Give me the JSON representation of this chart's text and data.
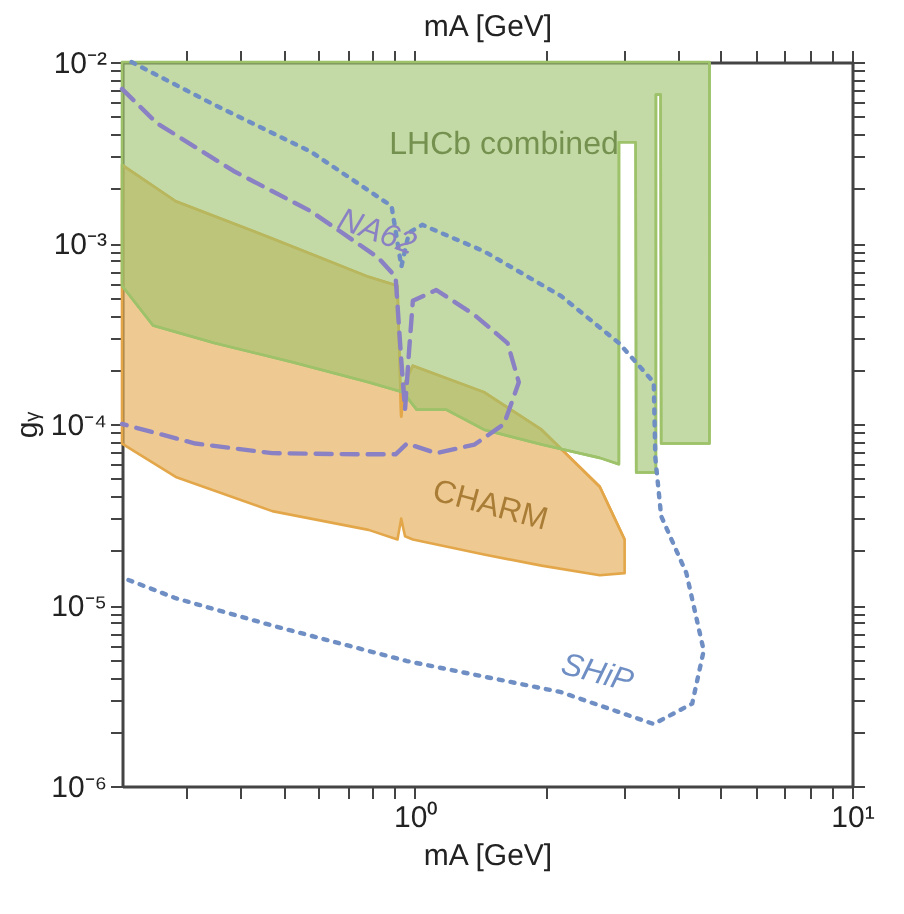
{
  "chart_data": {
    "type": "line",
    "xlabel": "mA [GeV]",
    "x2label": "mA [GeV]",
    "ylabel": "gᵧ",
    "log": "xy",
    "grid": false,
    "xlim": [
      0.214,
      10
    ],
    "ylim": [
      1e-06,
      0.01
    ],
    "xticks": [
      {
        "value": 0.3,
        "label": null
      },
      {
        "value": 0.4,
        "label": null
      },
      {
        "value": 0.5,
        "label": null
      },
      {
        "value": 0.6,
        "label": null
      },
      {
        "value": 0.7,
        "label": null
      },
      {
        "value": 0.8,
        "label": null
      },
      {
        "value": 0.9,
        "label": null
      },
      {
        "value": 1,
        "label": "10⁰"
      },
      {
        "value": 2,
        "label": null
      },
      {
        "value": 3,
        "label": null
      },
      {
        "value": 4,
        "label": null
      },
      {
        "value": 5,
        "label": null
      },
      {
        "value": 6,
        "label": null
      },
      {
        "value": 7,
        "label": null
      },
      {
        "value": 8,
        "label": null
      },
      {
        "value": 9,
        "label": null
      },
      {
        "value": 10,
        "label": "10¹"
      }
    ],
    "yticks": [
      {
        "value": 1e-06,
        "label": "10⁻⁶"
      },
      {
        "value": 2e-06,
        "label": null
      },
      {
        "value": 3e-06,
        "label": null
      },
      {
        "value": 4e-06,
        "label": null
      },
      {
        "value": 5e-06,
        "label": null
      },
      {
        "value": 6e-06,
        "label": null
      },
      {
        "value": 7e-06,
        "label": null
      },
      {
        "value": 8e-06,
        "label": null
      },
      {
        "value": 9e-06,
        "label": null
      },
      {
        "value": 1e-05,
        "label": "10⁻⁵"
      },
      {
        "value": 2e-05,
        "label": null
      },
      {
        "value": 3e-05,
        "label": null
      },
      {
        "value": 4e-05,
        "label": null
      },
      {
        "value": 5e-05,
        "label": null
      },
      {
        "value": 6e-05,
        "label": null
      },
      {
        "value": 7e-05,
        "label": null
      },
      {
        "value": 8e-05,
        "label": null
      },
      {
        "value": 9e-05,
        "label": null
      },
      {
        "value": 0.0001,
        "label": "10⁻⁴"
      },
      {
        "value": 0.0002,
        "label": null
      },
      {
        "value": 0.0003,
        "label": null
      },
      {
        "value": 0.0004,
        "label": null
      },
      {
        "value": 0.0005,
        "label": null
      },
      {
        "value": 0.0006,
        "label": null
      },
      {
        "value": 0.0007,
        "label": null
      },
      {
        "value": 0.0008,
        "label": null
      },
      {
        "value": 0.0009,
        "label": null
      },
      {
        "value": 0.001,
        "label": "10⁻³"
      },
      {
        "value": 0.002,
        "label": null
      },
      {
        "value": 0.003,
        "label": null
      },
      {
        "value": 0.004,
        "label": null
      },
      {
        "value": 0.005,
        "label": null
      },
      {
        "value": 0.006,
        "label": null
      },
      {
        "value": 0.007,
        "label": null
      },
      {
        "value": 0.008,
        "label": null
      },
      {
        "value": 0.009,
        "label": null
      },
      {
        "value": 0.01,
        "label": "10⁻²"
      }
    ],
    "series": [
      {
        "name": "CHARM",
        "type": "line",
        "color": "#e3a74a",
        "line_style": "solid",
        "x": [
          0.214,
          0.284,
          0.472,
          0.784,
          0.913,
          0.931,
          0.95,
          0.99,
          1.44,
          1.95,
          2.65,
          3.02
        ],
        "values": [
          0.0027,
          0.0017,
          0.00106,
          0.00065,
          0.00058,
          0.00011,
          0.00017,
          0.00021,
          0.00015,
          9.3e-05,
          4.5e-05,
          2.3e-05
        ],
        "lower": [
          7.8e-05,
          5.1e-05,
          3.3e-05,
          2.6e-05,
          2.3e-05,
          3e-05,
          2.4e-05,
          2.3e-05,
          1.9e-05,
          1.65e-05,
          1.46e-05,
          1.5e-05
        ],
        "upper": [
          0.0027,
          0.0017,
          0.00106,
          0.00065,
          0.00058,
          0.00011,
          0.00017,
          0.00021,
          0.00015,
          9.3e-05,
          4.5e-05,
          2.3e-05
        ]
      },
      {
        "name": "LHCb combined",
        "type": "line",
        "color": "#9dc26a",
        "line_style": "solid",
        "x": [
          0.214,
          0.252,
          0.348,
          0.523,
          0.784,
          0.94,
          1.01,
          1.18,
          1.44,
          1.95,
          2.65,
          2.93,
          2.931,
          3.2,
          3.21,
          3.56,
          3.561,
          3.65,
          3.66,
          4.0,
          4.72,
          4.721
        ],
        "values": [
          0.00058,
          0.00035,
          0.00028,
          0.00022,
          0.00017,
          0.00015,
          0.00012,
          0.00012,
          9.3e-05,
          7.7e-05,
          6.5e-05,
          6e-05,
          0.0036,
          0.0036,
          5.4e-05,
          5.4e-05,
          0.0066,
          0.0066,
          7.8e-05,
          7.8e-05,
          7.8e-05,
          0.01
        ],
        "lower": [
          0.00058,
          0.00035,
          0.00028,
          0.00022,
          0.00017,
          0.00015,
          0.00012,
          0.00012,
          9.3e-05,
          7.7e-05,
          6.5e-05,
          6e-05,
          0.0036,
          0.0036,
          5.4e-05,
          5.4e-05,
          0.0066,
          0.0066,
          7.8e-05,
          7.8e-05,
          7.8e-05,
          0.01
        ],
        "upper": [
          0.01,
          0.01,
          0.01,
          0.01,
          0.01,
          0.01,
          0.01,
          0.01,
          0.01,
          0.01,
          0.01,
          0.01,
          0.01,
          0.01,
          0.01,
          0.01,
          0.01,
          0.01,
          0.01,
          0.01,
          0.01,
          0.01
        ]
      },
      {
        "name": "NA62",
        "color": "#8a80c4",
        "line_style": "dashed",
        "x": [
          0.214,
          0.257,
          0.385,
          0.578,
          0.825,
          0.904,
          0.932,
          0.95,
          0.97,
          0.99,
          1.12,
          1.37,
          1.63,
          1.73,
          1.6,
          1.37,
          1.12,
          0.96,
          0.904,
          0.745,
          0.472,
          0.315,
          0.214
        ],
        "values": [
          0.0071,
          0.0046,
          0.0025,
          0.0015,
          0.00083,
          0.00065,
          0.00022,
          0.00012,
          0.00025,
          0.00048,
          0.00055,
          0.0004,
          0.00028,
          0.00017,
          0.0001,
          7.7e-05,
          6.9e-05,
          7.8e-05,
          6.8e-05,
          6.8e-05,
          6.9e-05,
          7.8e-05,
          0.0001
        ]
      },
      {
        "name": "SHiP",
        "color": "#6f8fc4",
        "line_style": "dotted",
        "x": [
          0.225,
          0.348,
          0.578,
          0.885,
          0.932,
          0.97,
          1.04,
          1.44,
          2.16,
          2.93,
          3.52,
          3.55,
          3.66,
          4.18,
          4.58,
          4.31,
          3.52,
          2.16,
          0.96,
          0.472,
          0.284,
          0.214
        ],
        "values": [
          0.01,
          0.0058,
          0.0032,
          0.0016,
          0.00074,
          0.00114,
          0.00126,
          0.0009,
          0.00051,
          0.00028,
          0.00017,
          6.5e-05,
          3.1e-05,
          1.5e-05,
          5.6e-06,
          2.85e-06,
          2.2e-06,
          3.3e-06,
          4.9e-06,
          7.7e-06,
          1.09e-05,
          1.42e-05
        ]
      }
    ]
  }
}
